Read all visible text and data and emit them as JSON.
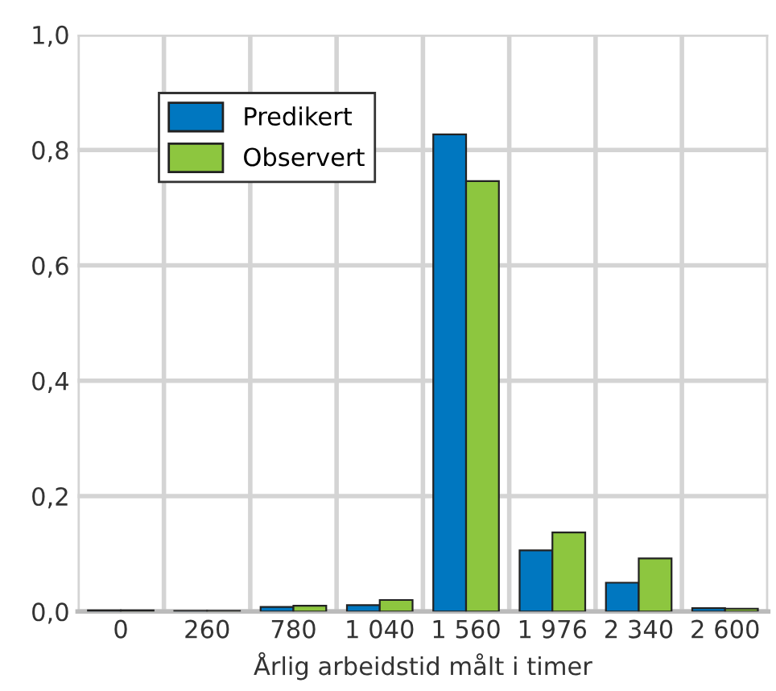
{
  "chart_data": {
    "type": "bar",
    "xlabel": "Årlig arbeidstid målt i timer",
    "categories": [
      "0",
      "260",
      "780",
      "1 040",
      "1 560",
      "1 976",
      "2 340",
      "2 600"
    ],
    "series": [
      {
        "name": "Predikert",
        "color": "#0077c0",
        "values": [
          0.002,
          0.001,
          0.008,
          0.011,
          0.827,
          0.106,
          0.05,
          0.006
        ]
      },
      {
        "name": "Observert",
        "color": "#8dc63f",
        "values": [
          0.002,
          0.001,
          0.01,
          0.02,
          0.746,
          0.137,
          0.092,
          0.005
        ]
      }
    ],
    "ylim": [
      0,
      1.0
    ],
    "yticks": [
      {
        "value": 0,
        "label": "0,0"
      },
      {
        "value": 0.2,
        "label": "0,2"
      },
      {
        "value": 0.4,
        "label": "0,4"
      },
      {
        "value": 0.6,
        "label": "0,6"
      },
      {
        "value": 0.8,
        "label": "0,8"
      },
      {
        "value": 1.0,
        "label": "1,0"
      }
    ],
    "grid": true,
    "legend": "top left"
  }
}
